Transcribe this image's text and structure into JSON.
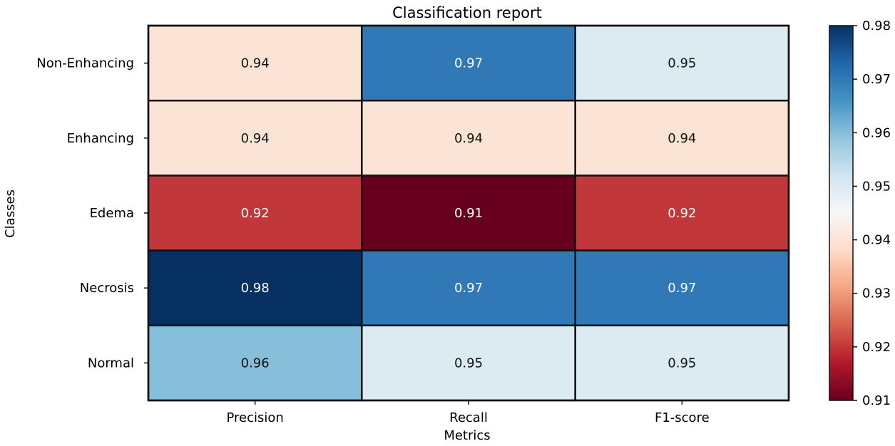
{
  "chart_data": {
    "type": "heatmap",
    "title": "Classification report",
    "xlabel": "Metrics",
    "ylabel": "Classes",
    "x_categories": [
      "Precision",
      "Recall",
      "F1-score"
    ],
    "y_categories": [
      "Non-Enhancing",
      "Enhancing",
      "Edema",
      "Necrosis",
      "Normal"
    ],
    "values": [
      [
        0.94,
        0.97,
        0.95
      ],
      [
        0.94,
        0.94,
        0.94
      ],
      [
        0.92,
        0.91,
        0.92
      ],
      [
        0.98,
        0.97,
        0.97
      ],
      [
        0.96,
        0.95,
        0.95
      ]
    ],
    "colorbar": {
      "min": 0.91,
      "max": 0.98,
      "ticks": [
        "0.91",
        "0.92",
        "0.93",
        "0.94",
        "0.95",
        "0.96",
        "0.97",
        "0.98"
      ],
      "colormap": "RdBu",
      "colors": [
        "#67001f",
        "#b2182b",
        "#d6604d",
        "#f4a582",
        "#fddbc7",
        "#f7f7f7",
        "#d1e5f0",
        "#92c5de",
        "#4393c3",
        "#2166ac",
        "#053061"
      ]
    },
    "cell_border_color": "#111111"
  }
}
